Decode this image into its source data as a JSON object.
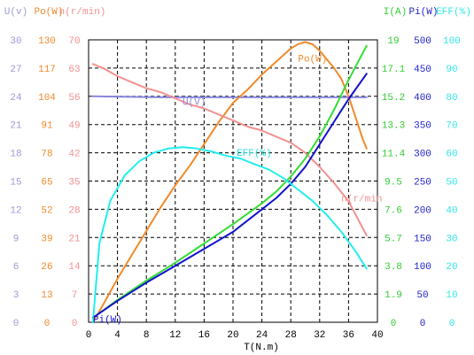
{
  "chart_data": {
    "type": "line",
    "xlabel": "T(N.m)",
    "x_ticks": [
      "0",
      "4",
      "8",
      "12",
      "16",
      "20",
      "24",
      "28",
      "32",
      "36",
      "40"
    ],
    "xlim": [
      0,
      40
    ],
    "grid": true,
    "left_axes": [
      {
        "title": "U(v)",
        "color": "#9a9ad6",
        "ticks": [
          "0",
          "3",
          "6",
          "9",
          "12",
          "15",
          "18",
          "21",
          "24",
          "27",
          "30"
        ],
        "range": [
          0,
          30
        ]
      },
      {
        "title": "Po(W)",
        "color": "#f08a2a",
        "ticks": [
          "0",
          "13",
          "26",
          "39",
          "52",
          "65",
          "78",
          "91",
          "104",
          "117",
          "130"
        ],
        "range": [
          0,
          130
        ]
      },
      {
        "title": "n(r/min)",
        "color": "#f29090",
        "ticks": [
          "0",
          "7",
          "14",
          "21",
          "28",
          "35",
          "42",
          "49",
          "56",
          "63",
          "70"
        ],
        "range": [
          0,
          70
        ]
      }
    ],
    "right_axes": [
      {
        "title": "I(A)",
        "color": "#33cc33",
        "ticks": [
          "0",
          "1.9",
          "3.8",
          "5.7",
          "7.6",
          "9.5",
          "11.4",
          "13.3",
          "15.2",
          "17.1",
          "19"
        ],
        "range": [
          0,
          19
        ]
      },
      {
        "title": "Pi(W)",
        "color": "#2222cc",
        "ticks": [
          "0",
          "50",
          "100",
          "150",
          "200",
          "250",
          "300",
          "350",
          "400",
          "450",
          "500"
        ],
        "range": [
          0,
          500
        ]
      },
      {
        "title": "EFF(%)",
        "color": "#33e6e6",
        "ticks": [
          "0",
          "10",
          "20",
          "30",
          "40",
          "50",
          "60",
          "70",
          "80",
          "90",
          "100"
        ],
        "range": [
          0,
          100
        ]
      }
    ],
    "series": [
      {
        "name": "U(V)",
        "axis": "U(v)",
        "color": "#8888dd",
        "x": [
          0.6,
          10,
          20,
          30,
          38.5
        ],
        "y": [
          24.0,
          23.9,
          23.9,
          23.9,
          23.9
        ]
      },
      {
        "name": "Po(W)",
        "axis": "Po(W)",
        "color": "#f08a2a",
        "x": [
          0.6,
          2,
          4,
          6,
          8,
          10,
          12,
          14,
          16,
          18,
          20,
          22,
          24,
          26,
          28,
          29,
          30,
          31,
          32,
          33,
          34,
          35,
          36,
          37,
          38,
          38.5
        ],
        "y": [
          0,
          8,
          20,
          31,
          42,
          53,
          63,
          72,
          82,
          92,
          101,
          107,
          114,
          120,
          126,
          128,
          129,
          128,
          125,
          121,
          117,
          112,
          104,
          94,
          84,
          80
        ]
      },
      {
        "name": "n(r/min)",
        "axis": "n(r/min)",
        "color": "#f29090",
        "x": [
          0.6,
          2,
          4,
          6,
          8,
          10,
          12,
          14,
          16,
          18,
          20,
          22,
          24,
          26,
          28,
          30,
          32,
          34,
          36,
          38.5
        ],
        "y": [
          64,
          63,
          61,
          59.5,
          58,
          57,
          55.5,
          54,
          53,
          51.5,
          50,
          48.5,
          47.5,
          46,
          44.5,
          42,
          38.5,
          34.5,
          30,
          21.5
        ]
      },
      {
        "name": "I(A)",
        "axis": "I(A)",
        "color": "#33dd33",
        "x": [
          0.6,
          4,
          8,
          12,
          16,
          20,
          24,
          26,
          28,
          30,
          32,
          34,
          36,
          38.5
        ],
        "y": [
          0.3,
          1.5,
          2.8,
          4.0,
          5.3,
          6.6,
          8.0,
          8.8,
          9.8,
          11.0,
          12.5,
          14.3,
          16.3,
          18.6
        ]
      },
      {
        "name": "Pi(W)",
        "axis": "Pi(W)",
        "color": "#1111cc",
        "x": [
          0.6,
          4,
          8,
          12,
          16,
          20,
          24,
          26,
          28,
          30,
          32,
          34,
          36,
          38.5
        ],
        "y": [
          8,
          38,
          70,
          100,
          130,
          160,
          200,
          220,
          245,
          275,
          315,
          355,
          395,
          440
        ]
      },
      {
        "name": "EFF(%)",
        "axis": "EFF(%)",
        "color": "#22eeee",
        "x": [
          0.6,
          1.5,
          3,
          5,
          7,
          9,
          11,
          13,
          15,
          17,
          19,
          21,
          23,
          25,
          27,
          29,
          31,
          33,
          35,
          37,
          38.5
        ],
        "y": [
          0,
          28,
          43,
          52,
          57,
          60,
          61.5,
          62,
          61.5,
          60.5,
          59,
          58,
          56,
          54,
          51,
          47,
          43,
          38,
          32,
          25,
          19
        ]
      }
    ],
    "annotations": [
      {
        "text": "U(V)",
        "color": "#8888dd",
        "x": 13,
        "axis": "U(v)",
        "y": 23.1
      },
      {
        "text": "Po(W)",
        "color": "#f08a2a",
        "x": 29,
        "axis": "Po(W)",
        "y": 120
      },
      {
        "text": "n(r/min",
        "color": "#f29090",
        "x": 35,
        "axis": "n(r/min)",
        "y": 30
      },
      {
        "text": "EFF(%)",
        "color": "#22dddd",
        "x": 20.5,
        "axis": "EFF(%)",
        "y": 59
      },
      {
        "text": "Pi(W)",
        "color": "#1111cc",
        "x": 0.6,
        "axis": "Pi(W)",
        "y": 0
      }
    ]
  }
}
